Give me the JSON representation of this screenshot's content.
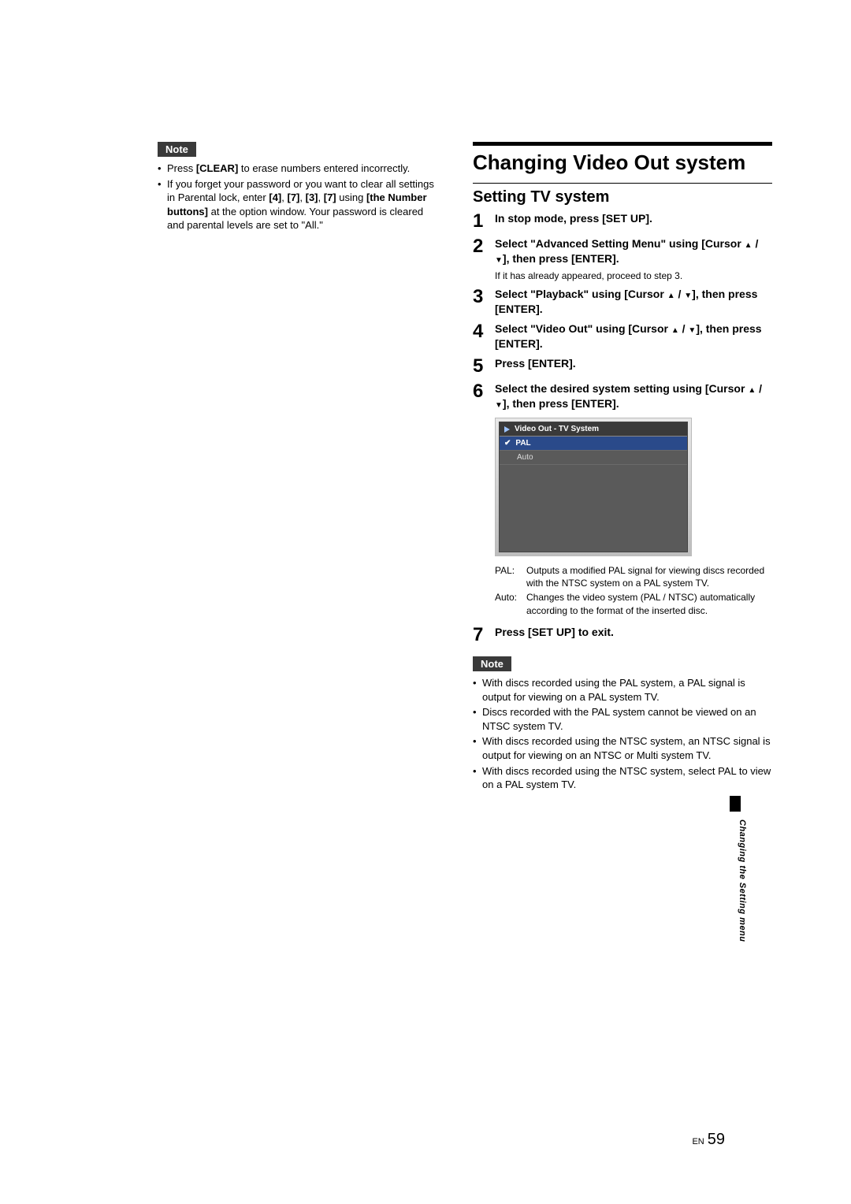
{
  "left": {
    "note_label": "Note",
    "items": [
      "Press <b>[CLEAR]</b> to erase numbers entered incorrectly.",
      "If you forget your password or you want to clear all settings in Parental lock, enter <b>[4]</b>, <b>[7]</b>, <b>[3]</b>, <b>[7]</b> using <b>[the Number buttons]</b> at the option window. Your password is cleared and parental levels are set to \"All.\""
    ]
  },
  "right": {
    "main_heading": "Changing Video Out system",
    "sub_heading": "Setting TV system",
    "steps": {
      "s1": "In stop mode, press [SET UP].",
      "s2_line1": "Select \"Advanced Setting Menu\" using [Cursor ",
      "s2_line2": "], then press [ENTER].",
      "s2_note": "If it has already appeared, proceed to step 3.",
      "s3_line1": "Select \"Playback\" using [Cursor ",
      "s3_line2": "], then press [ENTER].",
      "s4_line1": "Select \"Video Out\" using [Cursor ",
      "s4_line2": "], then press [ENTER].",
      "s5": "Press [ENTER].",
      "s6_line1": "Select the desired system setting using [Cursor ",
      "s6_line2": "], then press [ENTER].",
      "s7": "Press [SET UP] to exit."
    },
    "menu": {
      "title": "Video Out - TV System",
      "opt1": "PAL",
      "opt2": "Auto",
      "selected_index": 0,
      "bg_gradient_from": "#e8e8e8",
      "bg_gradient_to": "#bdbdbd",
      "selected_bg": "#2a4a8a"
    },
    "defs": {
      "pal_label": "PAL:",
      "pal_body": "Outputs a modified PAL signal for viewing discs recorded with the NTSC system on a PAL system TV.",
      "auto_label": "Auto:",
      "auto_body": "Changes the video system (PAL / NTSC) automatically according to the format of the inserted disc."
    },
    "note_label": "Note",
    "notes": [
      "With discs recorded using the PAL system, a PAL signal is output for viewing on a PAL system TV.",
      "Discs recorded with the PAL system cannot be viewed on an NTSC system TV.",
      "With discs recorded using the NTSC system, an NTSC signal is output for viewing on an NTSC or Multi system TV.",
      "With discs recorded using the NTSC system, select PAL to view on a PAL system TV."
    ]
  },
  "side": {
    "section": "Changing the Setting menu"
  },
  "footer": {
    "lang": "EN",
    "page": "59"
  },
  "colors": {
    "note_bg": "#3a3a3a",
    "text": "#000000",
    "page_bg": "#ffffff"
  }
}
